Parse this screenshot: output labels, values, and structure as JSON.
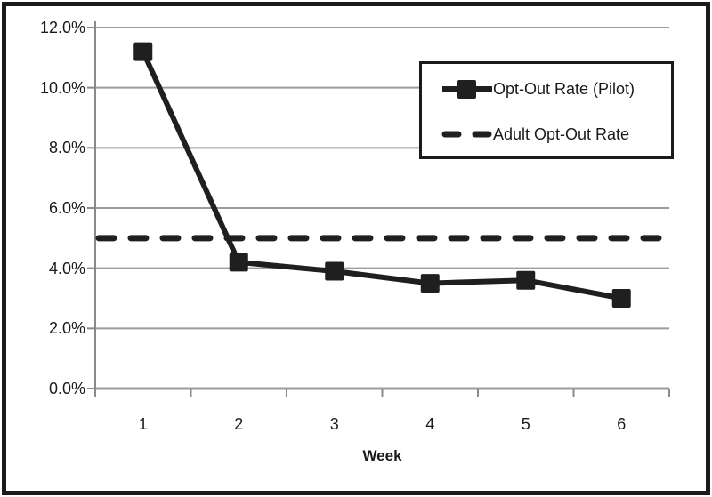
{
  "chart_data": {
    "type": "line",
    "title": "",
    "xlabel": "Week",
    "ylabel": "",
    "categories": [
      "1",
      "2",
      "3",
      "4",
      "5",
      "6"
    ],
    "y_ticks": [
      "12.0%",
      "10.0%",
      "8.0%",
      "6.0%",
      "4.0%",
      "2.0%",
      "0.0%"
    ],
    "ylim": [
      0,
      12
    ],
    "y_tick_step": 2,
    "grid": "horizontal",
    "legend_position": "top-right-inside",
    "series": [
      {
        "name": "Opt-Out Rate (Pilot)",
        "line_style": "solid",
        "marker": "square",
        "values": [
          11.2,
          4.2,
          3.9,
          3.5,
          3.6,
          3.0
        ]
      },
      {
        "name": "Adult Opt-Out Rate",
        "line_style": "dashed",
        "marker": "none",
        "constant_value": 5.0
      }
    ],
    "colors": {
      "series": "#1f1f1f",
      "gridline": "#9c9c9c",
      "axis": "#8a8a8a",
      "background": "#ffffff",
      "frame_border": "#1a1a1a",
      "text": "#1a1a1a"
    }
  }
}
